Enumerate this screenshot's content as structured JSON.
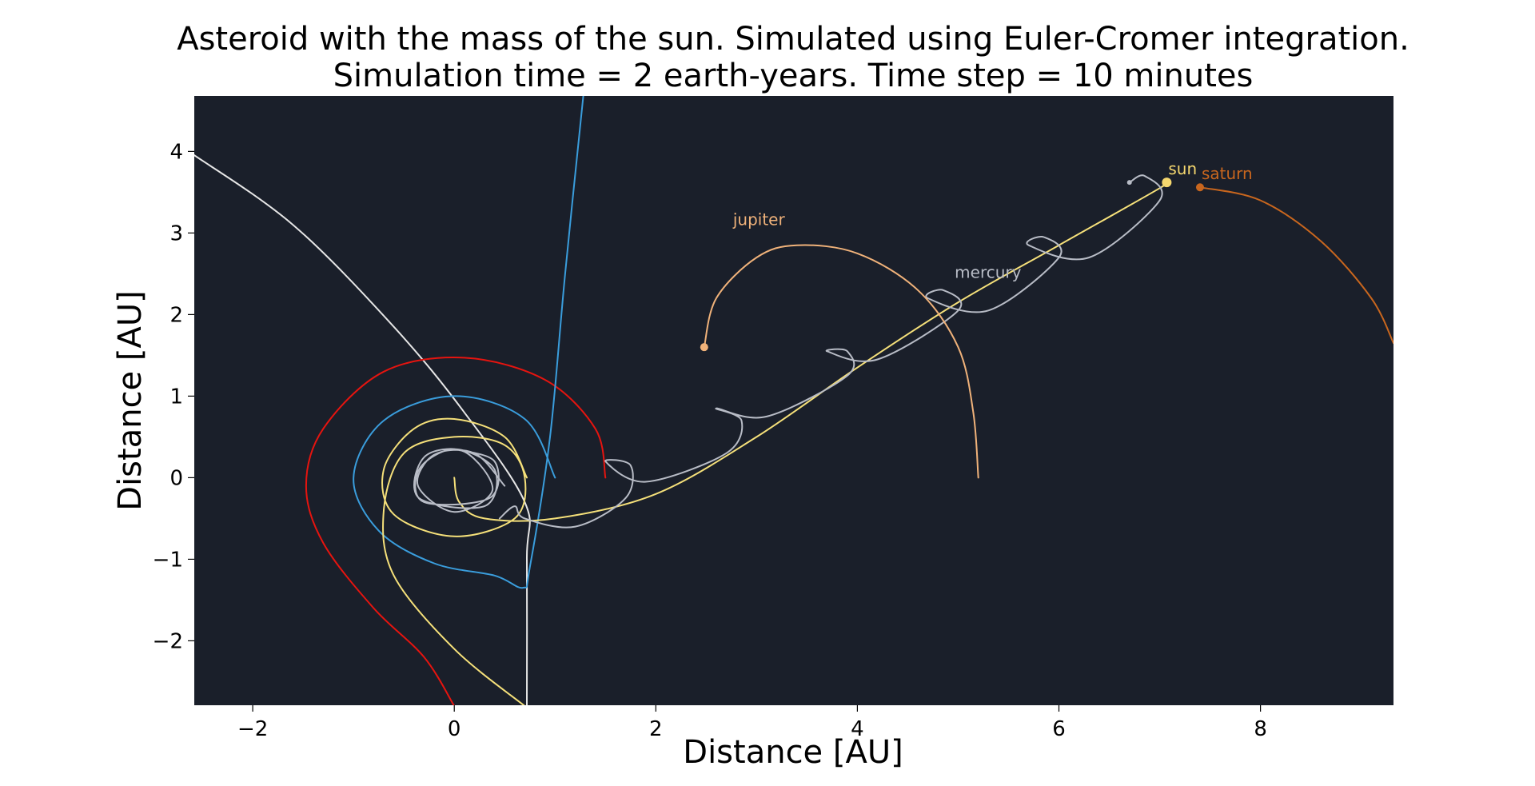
{
  "chart_data": {
    "type": "line",
    "title": [
      "Asteroid with the mass of the sun. Simulated using Euler-Cromer integration.",
      "Simulation time = 2 earth-years. Time step = 10 minutes"
    ],
    "xlabel": "Distance [AU]",
    "ylabel": "Distance [AU]",
    "xlim": [
      -2.58,
      9.32
    ],
    "ylim": [
      -2.79,
      4.68
    ],
    "xticks": [
      -2,
      0,
      2,
      4,
      6,
      8
    ],
    "yticks": [
      -2,
      -1,
      0,
      1,
      2,
      3,
      4
    ],
    "grid": false,
    "background": "#1a1f2a",
    "series": [
      {
        "name": "",
        "color": "#e6e6e6",
        "points": [
          [
            -2.6,
            3.97
          ],
          [
            -1.6,
            3.1
          ],
          [
            -0.6,
            1.85
          ],
          [
            0.1,
            0.8
          ],
          [
            0.7,
            -0.3
          ],
          [
            0.72,
            -1.0
          ],
          [
            0.72,
            -2.8
          ]
        ]
      },
      {
        "name": "",
        "color": "#e6140f",
        "points": [
          [
            1.5,
            0.0
          ],
          [
            1.4,
            0.6
          ],
          [
            0.9,
            1.2
          ],
          [
            0.1,
            1.47
          ],
          [
            -0.7,
            1.3
          ],
          [
            -1.3,
            0.6
          ],
          [
            -1.47,
            -0.1
          ],
          [
            -1.3,
            -0.8
          ],
          [
            -0.8,
            -1.6
          ],
          [
            -0.3,
            -2.2
          ],
          [
            0.0,
            -2.8
          ]
        ]
      },
      {
        "name": "",
        "color": "#3a9ddc",
        "points": [
          [
            1.28,
            4.68
          ],
          [
            1.1,
            2.5
          ],
          [
            0.95,
            0.5
          ],
          [
            0.75,
            -1.1
          ],
          [
            0.68,
            -1.35
          ],
          [
            0.4,
            -1.2
          ],
          [
            -0.2,
            -1.05
          ],
          [
            -0.75,
            -0.65
          ],
          [
            -1.0,
            0.0
          ],
          [
            -0.7,
            0.7
          ],
          [
            0.0,
            1.0
          ],
          [
            0.7,
            0.72
          ],
          [
            1.0,
            0.0
          ]
        ]
      },
      {
        "name": "",
        "color": "#f5e07a",
        "points": [
          [
            0.0,
            0.0
          ],
          [
            0.05,
            -0.3
          ],
          [
            0.3,
            -0.5
          ],
          [
            1.0,
            -0.5
          ],
          [
            2.0,
            -0.2
          ],
          [
            3.0,
            0.5
          ],
          [
            4.0,
            1.35
          ],
          [
            5.0,
            2.15
          ],
          [
            6.0,
            2.85
          ],
          [
            7.0,
            3.55
          ],
          [
            7.05,
            3.62
          ]
        ]
      },
      {
        "name": "",
        "color": "#f5e07a",
        "points": [
          [
            0.7,
            -2.8
          ],
          [
            0.0,
            -2.1
          ],
          [
            -0.6,
            -1.2
          ],
          [
            -0.7,
            -0.4
          ],
          [
            -0.5,
            0.3
          ],
          [
            0.0,
            0.5
          ],
          [
            0.5,
            0.4
          ],
          [
            0.7,
            0.0
          ],
          [
            0.6,
            -0.5
          ],
          [
            0.0,
            -0.72
          ],
          [
            -0.6,
            -0.45
          ],
          [
            -0.7,
            0.1
          ],
          [
            -0.4,
            0.6
          ],
          [
            0.0,
            0.72
          ],
          [
            0.5,
            0.5
          ],
          [
            0.72,
            0.0
          ]
        ]
      },
      {
        "name": "",
        "color": "#b8bcc6",
        "points": [
          [
            0.0,
            0.35
          ],
          [
            0.4,
            0.2
          ],
          [
            0.35,
            -0.25
          ],
          [
            -0.3,
            -0.3
          ],
          [
            -0.35,
            0.1
          ],
          [
            0.0,
            0.35
          ],
          [
            0.4,
            0.1
          ],
          [
            0.3,
            -0.35
          ],
          [
            -0.35,
            -0.25
          ],
          [
            -0.3,
            0.25
          ],
          [
            0.1,
            0.32
          ],
          [
            0.38,
            -0.15
          ],
          [
            0.0,
            -0.42
          ],
          [
            -0.36,
            -0.1
          ],
          [
            -0.2,
            0.28
          ],
          [
            0.2,
            0.3
          ],
          [
            0.5,
            -0.1
          ]
        ]
      },
      {
        "name": "",
        "color": "#b8bcc6",
        "points": [
          [
            0.45,
            -0.5
          ],
          [
            0.6,
            -0.35
          ],
          [
            0.7,
            -0.5
          ],
          [
            1.2,
            -0.6
          ],
          [
            1.7,
            -0.25
          ],
          [
            1.75,
            0.15
          ],
          [
            1.5,
            0.2
          ],
          [
            1.9,
            -0.05
          ],
          [
            2.7,
            0.3
          ],
          [
            2.85,
            0.7
          ],
          [
            2.6,
            0.85
          ],
          [
            3.1,
            0.75
          ],
          [
            3.9,
            1.25
          ],
          [
            3.9,
            1.55
          ],
          [
            3.7,
            1.55
          ],
          [
            4.2,
            1.45
          ],
          [
            5.0,
            2.05
          ],
          [
            4.85,
            2.3
          ],
          [
            4.7,
            2.2
          ],
          [
            5.3,
            2.05
          ],
          [
            6.0,
            2.7
          ],
          [
            5.85,
            2.95
          ],
          [
            5.7,
            2.85
          ],
          [
            6.3,
            2.7
          ],
          [
            7.0,
            3.4
          ],
          [
            6.85,
            3.7
          ],
          [
            6.7,
            3.62
          ]
        ]
      },
      {
        "name": "",
        "color": "#f0b27a",
        "points": [
          [
            2.48,
            1.6
          ],
          [
            2.6,
            2.2
          ],
          [
            3.0,
            2.7
          ],
          [
            3.4,
            2.85
          ],
          [
            4.0,
            2.75
          ],
          [
            4.6,
            2.3
          ],
          [
            5.0,
            1.6
          ],
          [
            5.15,
            0.8
          ],
          [
            5.2,
            0.0
          ]
        ]
      },
      {
        "name": "",
        "color": "#c8661e",
        "points": [
          [
            7.4,
            3.56
          ],
          [
            8.0,
            3.4
          ],
          [
            8.6,
            2.9
          ],
          [
            9.1,
            2.2
          ],
          [
            9.32,
            1.65
          ]
        ]
      }
    ],
    "bodies": [
      {
        "label": "sun",
        "x": 7.07,
        "y": 3.62,
        "color": "#f5d76e"
      },
      {
        "label": "saturn",
        "x": 7.4,
        "y": 3.56,
        "color": "#c8661e"
      },
      {
        "label": "jupiter",
        "x": 2.48,
        "y": 1.6,
        "color": "#f0b27a"
      },
      {
        "label": "mercury",
        "x": 6.7,
        "y": 3.62,
        "color": "#b8bcc6"
      }
    ],
    "annotations": [
      {
        "text": "sun",
        "x": 7.07,
        "y": 3.62,
        "color": "#f5d76e"
      },
      {
        "text": "saturn",
        "x": 7.4,
        "y": 3.56,
        "color": "#c8661e"
      },
      {
        "text": "jupiter",
        "x": 2.75,
        "y": 3.0,
        "color": "#f0b27a"
      },
      {
        "text": "mercury",
        "x": 4.95,
        "y": 2.35,
        "color": "#b8bcc6"
      }
    ]
  }
}
